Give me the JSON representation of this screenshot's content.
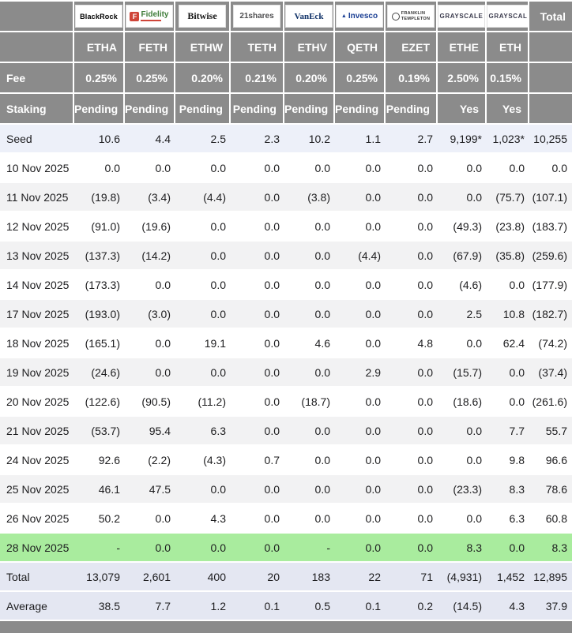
{
  "header": {
    "fee_label": "Fee",
    "staking_label": "Staking",
    "total_label": "Total"
  },
  "colors": {
    "header_gray": "#8b8b8b",
    "negative_red": "#c3554b",
    "latest_row_green": "#a9ec9e",
    "summary_row_blue": "#e4e7f2",
    "seed_row_blue": "#edf0f9",
    "alt_row_gray": "#f2f2f3"
  },
  "providers": [
    {
      "name": "BlackRock",
      "logo_text": "BlackRock",
      "ticker": "ETHA",
      "fee": "0.25%",
      "staking": "Pending"
    },
    {
      "name": "Fidelity",
      "logo_icon": "F",
      "logo_text": "Fidelity",
      "ticker": "FETH",
      "fee": "0.25%",
      "staking": "Pending"
    },
    {
      "name": "Bitwise",
      "logo_text": "Bitwise",
      "ticker": "ETHW",
      "fee": "0.20%",
      "staking": "Pending"
    },
    {
      "name": "21Shares",
      "logo_text": "21shares",
      "ticker": "TETH",
      "fee": "0.21%",
      "staking": "Pending"
    },
    {
      "name": "VanEck",
      "logo_text": "VanEck",
      "ticker": "ETHV",
      "fee": "0.20%",
      "staking": "Pending"
    },
    {
      "name": "Invesco",
      "logo_icon": "▲",
      "logo_text": "Invesco",
      "ticker": "QETH",
      "fee": "0.25%",
      "staking": "Pending"
    },
    {
      "name": "Franklin Templeton",
      "logo_line1": "FRANKLIN",
      "logo_line2": "TEMPLETON",
      "ticker": "EZET",
      "fee": "0.19%",
      "staking": "Pending"
    },
    {
      "name": "Grayscale",
      "logo_text": "GRAYSCALE",
      "ticker": "ETHE",
      "fee": "2.50%",
      "staking": "Yes"
    },
    {
      "name": "Grayscale",
      "logo_text": "GRAYSCALE",
      "ticker": "ETH",
      "fee": "0.15%",
      "staking": "Yes"
    }
  ],
  "table": {
    "rows": [
      {
        "label": "Seed",
        "style": "seed",
        "values": [
          "10.6",
          "4.4",
          "2.5",
          "2.3",
          "10.2",
          "1.1",
          "2.7",
          "9,199*",
          "1,023*",
          "10,255"
        ]
      },
      {
        "label": "10 Nov 2025",
        "style": "white",
        "values": [
          "0.0",
          "0.0",
          "0.0",
          "0.0",
          "0.0",
          "0.0",
          "0.0",
          "0.0",
          "0.0",
          "0.0"
        ]
      },
      {
        "label": "11 Nov 2025",
        "style": "alt",
        "values": [
          "(19.8)",
          "(3.4)",
          "(4.4)",
          "0.0",
          "(3.8)",
          "0.0",
          "0.0",
          "0.0",
          "(75.7)",
          "(107.1)"
        ]
      },
      {
        "label": "12 Nov 2025",
        "style": "white",
        "values": [
          "(91.0)",
          "(19.6)",
          "0.0",
          "0.0",
          "0.0",
          "0.0",
          "0.0",
          "(49.3)",
          "(23.8)",
          "(183.7)"
        ]
      },
      {
        "label": "13 Nov 2025",
        "style": "alt",
        "values": [
          "(137.3)",
          "(14.2)",
          "0.0",
          "0.0",
          "0.0",
          "(4.4)",
          "0.0",
          "(67.9)",
          "(35.8)",
          "(259.6)"
        ]
      },
      {
        "label": "14 Nov 2025",
        "style": "white",
        "values": [
          "(173.3)",
          "0.0",
          "0.0",
          "0.0",
          "0.0",
          "0.0",
          "0.0",
          "(4.6)",
          "0.0",
          "(177.9)"
        ]
      },
      {
        "label": "17 Nov 2025",
        "style": "alt",
        "values": [
          "(193.0)",
          "(3.0)",
          "0.0",
          "0.0",
          "0.0",
          "0.0",
          "0.0",
          "2.5",
          "10.8",
          "(182.7)"
        ]
      },
      {
        "label": "18 Nov 2025",
        "style": "white",
        "values": [
          "(165.1)",
          "0.0",
          "19.1",
          "0.0",
          "4.6",
          "0.0",
          "4.8",
          "0.0",
          "62.4",
          "(74.2)"
        ]
      },
      {
        "label": "19 Nov 2025",
        "style": "alt",
        "values": [
          "(24.6)",
          "0.0",
          "0.0",
          "0.0",
          "0.0",
          "2.9",
          "0.0",
          "(15.7)",
          "0.0",
          "(37.4)"
        ]
      },
      {
        "label": "20 Nov 2025",
        "style": "white",
        "values": [
          "(122.6)",
          "(90.5)",
          "(11.2)",
          "0.0",
          "(18.7)",
          "0.0",
          "0.0",
          "(18.6)",
          "0.0",
          "(261.6)"
        ]
      },
      {
        "label": "21 Nov 2025",
        "style": "alt",
        "values": [
          "(53.7)",
          "95.4",
          "6.3",
          "0.0",
          "0.0",
          "0.0",
          "0.0",
          "0.0",
          "7.7",
          "55.7"
        ]
      },
      {
        "label": "24 Nov 2025",
        "style": "white",
        "values": [
          "92.6",
          "(2.2)",
          "(4.3)",
          "0.7",
          "0.0",
          "0.0",
          "0.0",
          "0.0",
          "9.8",
          "96.6"
        ]
      },
      {
        "label": "25 Nov 2025",
        "style": "alt",
        "values": [
          "46.1",
          "47.5",
          "0.0",
          "0.0",
          "0.0",
          "0.0",
          "0.0",
          "(23.3)",
          "8.3",
          "78.6"
        ]
      },
      {
        "label": "26 Nov 2025",
        "style": "white",
        "values": [
          "50.2",
          "0.0",
          "4.3",
          "0.0",
          "0.0",
          "0.0",
          "0.0",
          "0.0",
          "6.3",
          "60.8"
        ]
      },
      {
        "label": "28 Nov 2025",
        "style": "latest",
        "values": [
          "-",
          "0.0",
          "0.0",
          "0.0",
          "-",
          "0.0",
          "0.0",
          "8.3",
          "0.0",
          "8.3"
        ]
      },
      {
        "label": "Total",
        "style": "summary",
        "values": [
          "13,079",
          "2,601",
          "400",
          "20",
          "183",
          "22",
          "71",
          "(4,931)",
          "1,452",
          "12,895"
        ]
      },
      {
        "label": "Average",
        "style": "summary",
        "values": [
          "38.5",
          "7.7",
          "1.2",
          "0.1",
          "0.5",
          "0.1",
          "0.2",
          "(14.5)",
          "4.3",
          "37.9"
        ]
      }
    ]
  }
}
